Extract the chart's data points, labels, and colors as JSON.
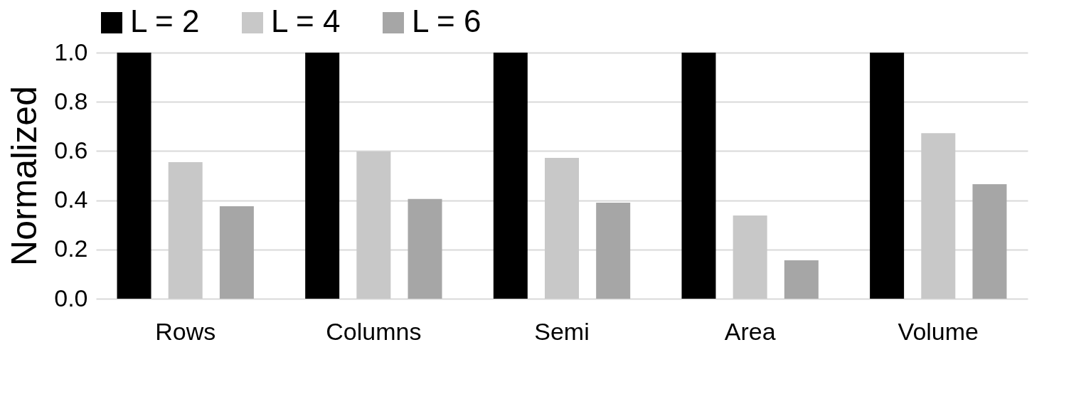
{
  "chart_data": {
    "type": "bar",
    "ylabel": "Normalized",
    "categories": [
      "Rows",
      "Columns",
      "Semi",
      "Area",
      "Volume"
    ],
    "series": [
      {
        "name": "L = 2",
        "color": "#000000",
        "values": [
          1.0,
          1.0,
          1.0,
          1.0,
          1.0
        ]
      },
      {
        "name": "L = 4",
        "color": "#c8c8c8",
        "values": [
          0.555,
          0.598,
          0.572,
          0.338,
          0.673
        ]
      },
      {
        "name": "L = 6",
        "color": "#a6a6a6",
        "values": [
          0.376,
          0.405,
          0.39,
          0.156,
          0.465
        ]
      }
    ],
    "ylim": [
      0,
      1.0
    ],
    "yticks": [
      {
        "value": 0,
        "label": "0.0"
      },
      {
        "value": 0.2,
        "label": "0.2"
      },
      {
        "value": 0.4,
        "label": "0.4"
      },
      {
        "value": 0.6,
        "label": "0.6"
      },
      {
        "value": 0.8,
        "label": "0.8"
      },
      {
        "value": 1.0,
        "label": "1.0"
      }
    ],
    "grid": "y",
    "legend": "top"
  }
}
